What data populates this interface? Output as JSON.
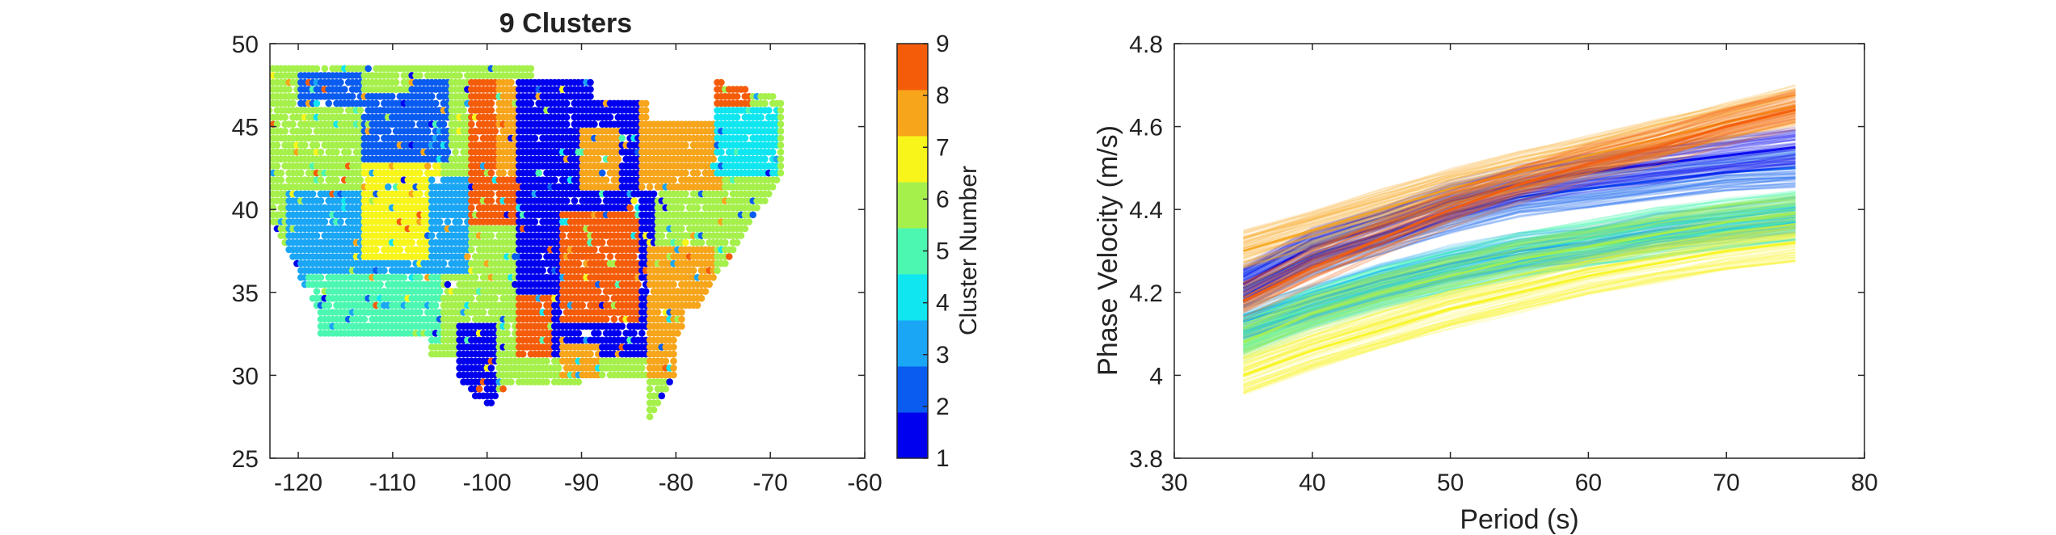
{
  "chart_data": [
    {
      "type": "scatter",
      "title": "9 Clusters",
      "xlabel": "",
      "ylabel": "",
      "xlim": [
        -123,
        -60
      ],
      "ylim": [
        25,
        50
      ],
      "xticks": [
        -120,
        -110,
        -100,
        -90,
        -80,
        -70,
        -60
      ],
      "yticks": [
        25,
        30,
        35,
        40,
        45,
        50
      ],
      "xtick_labels": [
        "-120",
        "-110",
        "-100",
        "-90",
        "-80",
        "-70",
        "-60"
      ],
      "ytick_labels": [
        "25",
        "30",
        "35",
        "40",
        "45",
        "50"
      ],
      "grid": false,
      "colorbar": {
        "label": "Cluster Number",
        "ticks": [
          1,
          2,
          3,
          4,
          5,
          6,
          7,
          8,
          9
        ],
        "tick_labels": [
          "1",
          "2",
          "3",
          "4",
          "5",
          "6",
          "7",
          "8",
          "9"
        ],
        "colors": [
          "#0000ee",
          "#0a5cf0",
          "#1aa6f5",
          "#10e6f0",
          "#4cf7b2",
          "#a6f04c",
          "#f7f51a",
          "#f7a51a",
          "#f55c0a"
        ]
      },
      "regions": [
        {
          "cluster": 6,
          "lon": [
            -123,
            -117
          ],
          "lat": [
            43.5,
            48
          ]
        },
        {
          "cluster": 2,
          "lon": [
            -120,
            -113
          ],
          "lat": [
            44.5,
            48.5
          ]
        },
        {
          "cluster": 6,
          "lon": [
            -120,
            -110
          ],
          "lat": [
            41.5,
            46
          ]
        },
        {
          "cluster": 2,
          "lon": [
            -113,
            -108
          ],
          "lat": [
            43,
            47
          ]
        },
        {
          "cluster": 6,
          "lon": [
            -118,
            -109
          ],
          "lat": [
            35,
            40
          ]
        },
        {
          "cluster": 3,
          "lon": [
            -121,
            -105
          ],
          "lat": [
            35,
            41
          ]
        },
        {
          "cluster": 7,
          "lon": [
            -113,
            -105
          ],
          "lat": [
            37,
            43
          ]
        },
        {
          "cluster": 5,
          "lon": [
            -119,
            -105
          ],
          "lat": [
            32,
            36
          ]
        },
        {
          "cluster": 3,
          "lon": [
            -106,
            -102
          ],
          "lat": [
            36,
            42
          ]
        },
        {
          "cluster": 2,
          "lon": [
            -108,
            -104
          ],
          "lat": [
            43,
            48
          ]
        },
        {
          "cluster": 9,
          "lon": [
            -102,
            -96
          ],
          "lat": [
            39,
            48
          ]
        },
        {
          "cluster": 8,
          "lon": [
            -99,
            -94
          ],
          "lat": [
            42,
            48
          ]
        },
        {
          "cluster": 1,
          "lon": [
            -97,
            -82
          ],
          "lat": [
            31,
            48
          ]
        },
        {
          "cluster": 9,
          "lon": [
            -92,
            -84
          ],
          "lat": [
            33,
            40
          ]
        },
        {
          "cluster": 8,
          "lon": [
            -90,
            -86
          ],
          "lat": [
            41,
            45
          ]
        },
        {
          "cluster": 8,
          "lon": [
            -84,
            -75
          ],
          "lat": [
            41,
            46.5
          ]
        },
        {
          "cluster": 4,
          "lon": [
            -76,
            -69
          ],
          "lat": [
            42,
            46
          ]
        },
        {
          "cluster": 9,
          "lon": [
            -76,
            -72
          ],
          "lat": [
            46,
            48
          ]
        },
        {
          "cluster": 8,
          "lon": [
            -83,
            -76
          ],
          "lat": [
            30,
            38
          ]
        },
        {
          "cluster": 1,
          "lon": [
            -103,
            -99
          ],
          "lat": [
            28,
            33
          ]
        },
        {
          "cluster": 9,
          "lon": [
            -97,
            -93
          ],
          "lat": [
            31,
            35
          ]
        },
        {
          "cluster": 8,
          "lon": [
            -92,
            -88
          ],
          "lat": [
            30,
            32
          ]
        }
      ]
    },
    {
      "type": "line",
      "title": "",
      "xlabel": "Period (s)",
      "ylabel": "Phase Velocity (m/s)",
      "xlim": [
        30,
        80
      ],
      "ylim": [
        3.8,
        4.8
      ],
      "xticks": [
        30,
        40,
        50,
        60,
        70,
        80
      ],
      "yticks": [
        3.8,
        4,
        4.2,
        4.4,
        4.6,
        4.8
      ],
      "xtick_labels": [
        "30",
        "40",
        "50",
        "60",
        "70",
        "80"
      ],
      "ytick_labels": [
        "3.8",
        "4",
        "4.2",
        "4.4",
        "4.6",
        "4.8"
      ],
      "grid": false,
      "x": [
        35,
        40,
        45,
        50,
        55,
        60,
        65,
        70,
        75
      ],
      "series": [
        {
          "cluster": 1,
          "color": "#0000ee",
          "values": [
            4.22,
            4.31,
            4.36,
            4.42,
            4.46,
            4.49,
            4.51,
            4.53,
            4.55
          ]
        },
        {
          "cluster": 2,
          "color": "#0a5cf0",
          "values": [
            4.21,
            4.29,
            4.34,
            4.39,
            4.43,
            4.45,
            4.47,
            4.49,
            4.5
          ]
        },
        {
          "cluster": 3,
          "color": "#1aa6f5",
          "values": [
            4.13,
            4.18,
            4.23,
            4.27,
            4.3,
            4.32,
            4.35,
            4.37,
            4.39
          ]
        },
        {
          "cluster": 4,
          "color": "#10e6f0",
          "values": [
            4.1,
            4.16,
            4.21,
            4.25,
            4.28,
            4.31,
            4.33,
            4.35,
            4.37
          ]
        },
        {
          "cluster": 5,
          "color": "#4cf7b2",
          "values": [
            4.1,
            4.17,
            4.22,
            4.26,
            4.3,
            4.33,
            4.36,
            4.38,
            4.4
          ]
        },
        {
          "cluster": 6,
          "color": "#a6f04c",
          "values": [
            4.08,
            4.15,
            4.2,
            4.24,
            4.28,
            4.31,
            4.34,
            4.37,
            4.39
          ]
        },
        {
          "cluster": 7,
          "color": "#f7f51a",
          "values": [
            4.0,
            4.06,
            4.11,
            4.16,
            4.2,
            4.24,
            4.27,
            4.3,
            4.32
          ]
        },
        {
          "cluster": 8,
          "color": "#f7a51a",
          "values": [
            4.3,
            4.35,
            4.4,
            4.45,
            4.49,
            4.53,
            4.57,
            4.61,
            4.65
          ]
        },
        {
          "cluster": 9,
          "color": "#f55c0a",
          "values": [
            4.18,
            4.26,
            4.33,
            4.4,
            4.46,
            4.51,
            4.55,
            4.6,
            4.64
          ]
        }
      ]
    }
  ]
}
